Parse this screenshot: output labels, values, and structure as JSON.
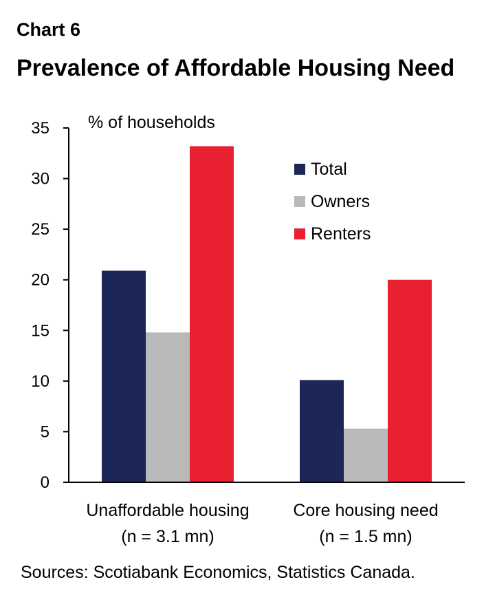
{
  "header": {
    "chart_label": "Chart 6",
    "title": "Prevalence of Affordable Housing Need"
  },
  "footer": {
    "source": "Sources: Scotiabank Economics, Statistics Canada."
  },
  "chart_data": {
    "type": "bar",
    "title": "Prevalence of Affordable Housing Need",
    "ylabel": "% of households",
    "ylim": [
      0,
      35
    ],
    "yticks": [
      0,
      5,
      10,
      15,
      20,
      25,
      30,
      35
    ],
    "grid": false,
    "legend_position": "top-right",
    "categories": [
      [
        "Unaffordable housing",
        "(n = 3.1 mn)"
      ],
      [
        "Core housing need",
        "(n = 1.5 mn)"
      ]
    ],
    "series": [
      {
        "name": "Total",
        "color": "#1c2657",
        "values": [
          20.9,
          10.1
        ]
      },
      {
        "name": "Owners",
        "color": "#b9b9b9",
        "values": [
          14.8,
          5.3
        ]
      },
      {
        "name": "Renters",
        "color": "#e8202f",
        "values": [
          33.2,
          20.0
        ]
      }
    ]
  }
}
